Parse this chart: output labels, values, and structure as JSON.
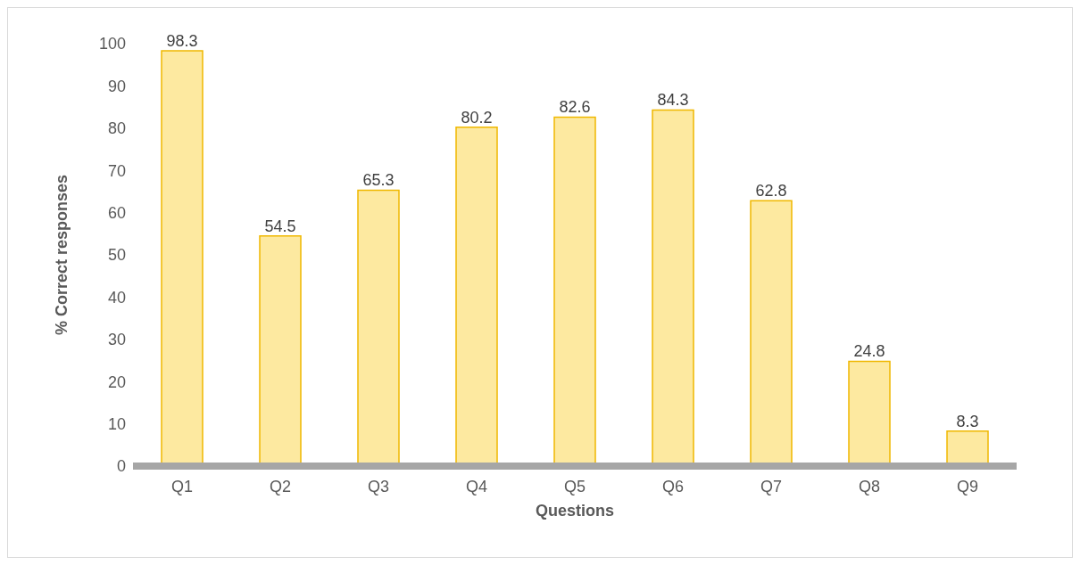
{
  "chart_data": {
    "type": "bar",
    "xlabel": "Questions",
    "ylabel": "% Correct responses",
    "categories": [
      "Q1",
      "Q2",
      "Q3",
      "Q4",
      "Q5",
      "Q6",
      "Q7",
      "Q8",
      "Q9"
    ],
    "values": [
      98.3,
      54.5,
      65.3,
      80.2,
      82.6,
      84.3,
      62.8,
      24.8,
      8.3
    ],
    "color": "#fde9a0",
    "ylim": [
      0,
      100
    ],
    "yticks": [
      0,
      10,
      20,
      30,
      40,
      50,
      60,
      70,
      80,
      90,
      100
    ],
    "data_labels": true,
    "grid": false,
    "legend": false
  }
}
